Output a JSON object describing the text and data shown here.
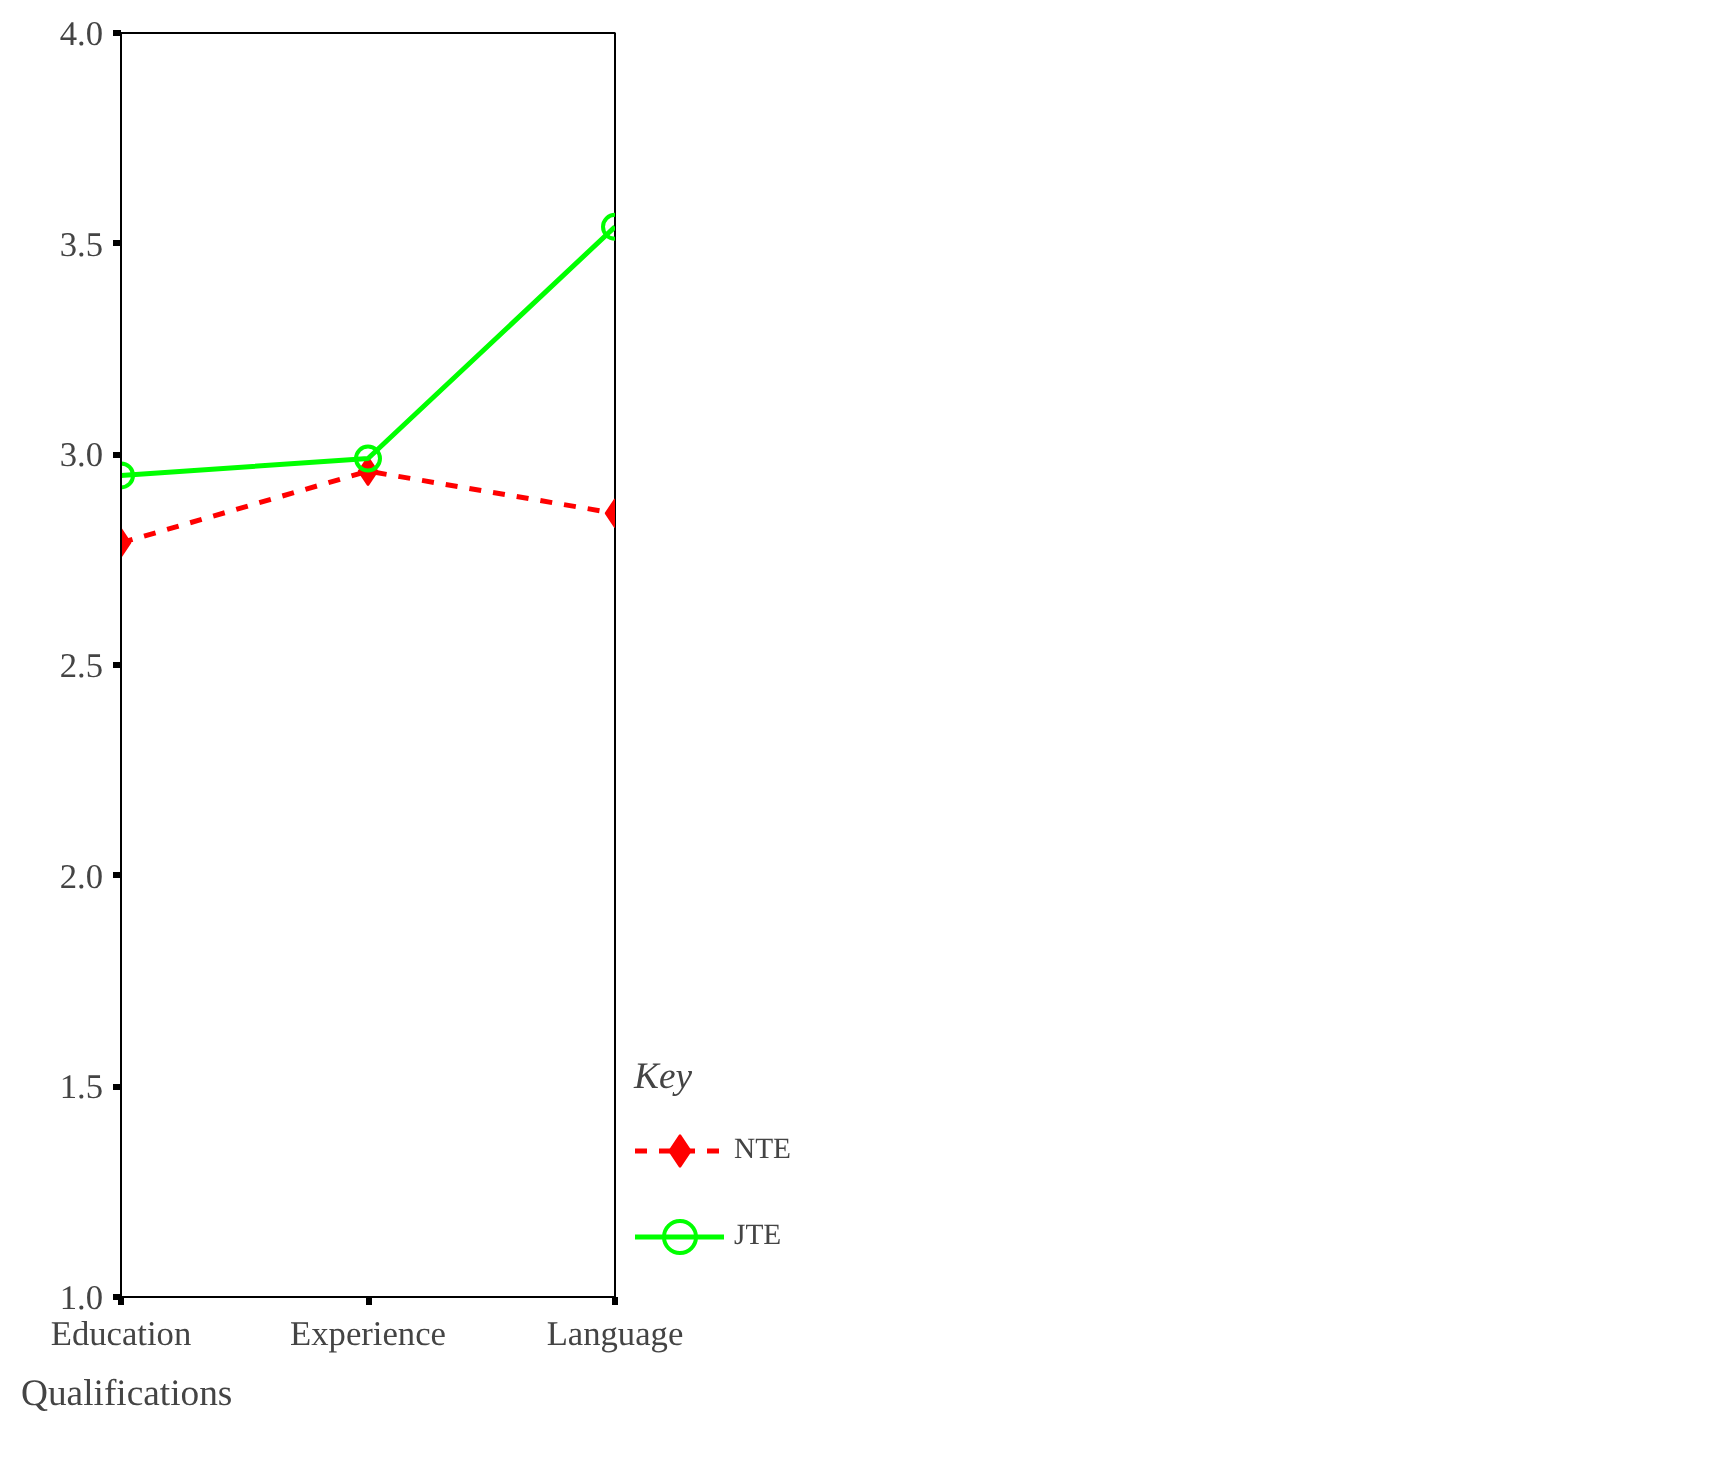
{
  "chart_data": {
    "type": "line",
    "xlabel": "Qualifications",
    "legend_title": "Key",
    "legend": "right",
    "grid": false,
    "categories": [
      "Education",
      "Experience",
      "Language"
    ],
    "ylim": [
      1.0,
      4.0
    ],
    "yticks": [
      {
        "value": 1.0,
        "label": "1.0"
      },
      {
        "value": 1.5,
        "label": "1.5"
      },
      {
        "value": 2.0,
        "label": "2.0"
      },
      {
        "value": 2.5,
        "label": "2.5"
      },
      {
        "value": 3.0,
        "label": "3.0"
      },
      {
        "value": 3.5,
        "label": "3.5"
      },
      {
        "value": 4.0,
        "label": "4.0"
      }
    ],
    "series": [
      {
        "name": "NTE",
        "color": "#ff0000",
        "values": [
          2.79,
          2.96,
          2.86
        ],
        "marker": "diamond",
        "line_style": "dashed"
      },
      {
        "name": "JTE",
        "color": "#00ff00",
        "values": [
          2.95,
          2.99,
          3.54
        ],
        "marker": "circle",
        "line_style": "solid"
      }
    ]
  }
}
